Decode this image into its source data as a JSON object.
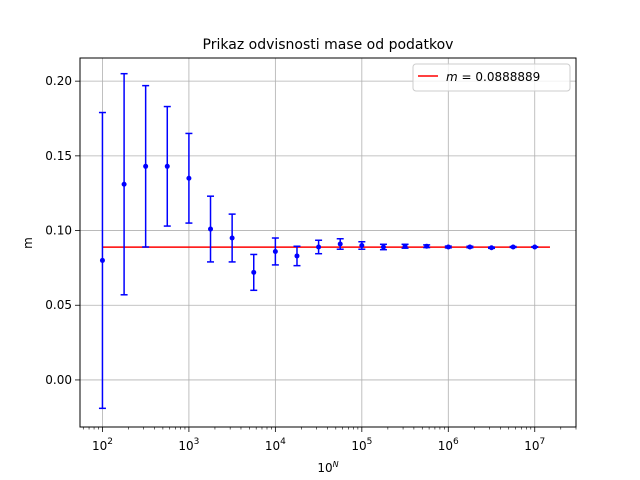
{
  "chart_data": {
    "type": "scatter",
    "title": "Prikaz odvisnosti mase od podatkov",
    "xlabel_base": "10",
    "xlabel_sup": "N",
    "ylabel": "m",
    "xscale": "log",
    "xlim": [
      55,
      30000000
    ],
    "ylim": [
      -0.0315,
      0.2155
    ],
    "grid": true,
    "legend_placement": "top-right",
    "x_ticks": [
      {
        "value": 100,
        "base": "10",
        "exp": "2"
      },
      {
        "value": 1000,
        "base": "10",
        "exp": "3"
      },
      {
        "value": 10000,
        "base": "10",
        "exp": "4"
      },
      {
        "value": 100000,
        "base": "10",
        "exp": "5"
      },
      {
        "value": 1000000,
        "base": "10",
        "exp": "6"
      },
      {
        "value": 10000000,
        "base": "10",
        "exp": "7"
      }
    ],
    "y_ticks": [
      {
        "value": 0.0,
        "label": "0.00"
      },
      {
        "value": 0.05,
        "label": "0.05"
      },
      {
        "value": 0.1,
        "label": "0.10"
      },
      {
        "value": 0.15,
        "label": "0.15"
      },
      {
        "value": 0.2,
        "label": "0.20"
      }
    ],
    "reference_line": {
      "legend_label": "m = 0.0888889",
      "legend_var": "m",
      "legend_eq": " = 0.0888889",
      "y": 0.0888889,
      "x_range": [
        100,
        15000000
      ],
      "color": "#ff0000"
    },
    "series": [
      {
        "color": "#0000ff",
        "points": [
          {
            "x": 100,
            "y": 0.08,
            "err": 0.099
          },
          {
            "x": 178,
            "y": 0.131,
            "err": 0.074
          },
          {
            "x": 316,
            "y": 0.143,
            "err": 0.054
          },
          {
            "x": 562,
            "y": 0.143,
            "err": 0.04
          },
          {
            "x": 1000,
            "y": 0.135,
            "err": 0.03
          },
          {
            "x": 1778,
            "y": 0.101,
            "err": 0.022
          },
          {
            "x": 3162,
            "y": 0.095,
            "err": 0.016
          },
          {
            "x": 5623,
            "y": 0.072,
            "err": 0.012
          },
          {
            "x": 10000,
            "y": 0.086,
            "err": 0.009
          },
          {
            "x": 17783,
            "y": 0.083,
            "err": 0.0065
          },
          {
            "x": 31623,
            "y": 0.089,
            "err": 0.0045
          },
          {
            "x": 56234,
            "y": 0.091,
            "err": 0.0035
          },
          {
            "x": 100000,
            "y": 0.09,
            "err": 0.0025
          },
          {
            "x": 177828,
            "y": 0.089,
            "err": 0.0018
          },
          {
            "x": 316228,
            "y": 0.0895,
            "err": 0.0013
          },
          {
            "x": 562341,
            "y": 0.0895,
            "err": 0.0009
          },
          {
            "x": 1000000,
            "y": 0.089,
            "err": 0.0006
          },
          {
            "x": 1778279,
            "y": 0.089,
            "err": 0.0005
          },
          {
            "x": 3162278,
            "y": 0.0885,
            "err": 0.0004
          },
          {
            "x": 5623413,
            "y": 0.089,
            "err": 0.0003
          },
          {
            "x": 10000000,
            "y": 0.089,
            "err": 0.0002
          }
        ]
      }
    ]
  }
}
